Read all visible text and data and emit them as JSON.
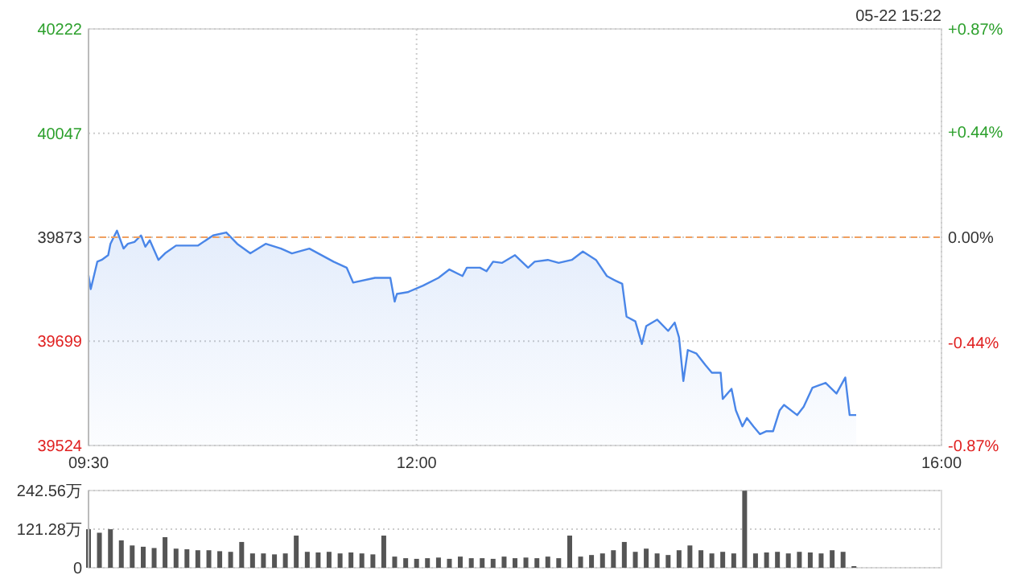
{
  "chart_data": [
    {
      "type": "area",
      "annotations": [
        "05-22 15:22"
      ],
      "x": [
        9.5,
        9.517,
        9.567,
        9.6,
        9.65,
        9.667,
        9.717,
        9.767,
        9.8,
        9.85,
        9.9,
        9.933,
        9.967,
        10.033,
        10.083,
        10.167,
        10.267,
        10.333,
        10.45,
        10.55,
        10.633,
        10.733,
        10.85,
        10.967,
        11.05,
        11.183,
        11.367,
        11.467,
        11.517,
        11.683,
        11.8,
        11.833,
        11.85,
        11.933,
        12.05,
        12.167,
        12.25,
        12.35,
        12.383,
        12.483,
        12.533,
        12.583,
        12.65,
        12.75,
        12.85,
        12.9,
        13,
        13.083,
        13.183,
        13.267,
        13.367,
        13.45,
        13.517,
        13.567,
        13.6,
        13.667,
        13.717,
        13.75,
        13.833,
        13.917,
        13.967,
        14,
        14.033,
        14.067,
        14.133,
        14.2,
        14.25,
        14.317,
        14.333,
        14.4,
        14.433,
        14.483,
        14.517,
        14.567,
        14.617,
        14.667,
        14.717,
        14.767,
        14.8,
        14.9,
        14.95,
        15.017,
        15.117,
        15.2,
        15.267,
        15.3,
        15.35
      ],
      "series": [
        {
          "color": "#4a86e8",
          "values": [
            39809,
            39786,
            39832,
            39835,
            39843,
            39862,
            39884,
            39854,
            39862,
            39865,
            39876,
            39857,
            39868,
            39835,
            39846,
            39859,
            39859,
            39859,
            39876,
            39881,
            39862,
            39846,
            39862,
            39854,
            39846,
            39854,
            39832,
            39822,
            39797,
            39805,
            39805,
            39765,
            39778,
            39781,
            39792,
            39805,
            39819,
            39808,
            39822,
            39822,
            39816,
            39832,
            39830,
            39843,
            39822,
            39832,
            39835,
            39830,
            39835,
            39849,
            39835,
            39808,
            39800,
            39795,
            39740,
            39732,
            39694,
            39724,
            39735,
            39716,
            39730,
            39705,
            39632,
            39684,
            39678,
            39659,
            39646,
            39646,
            39602,
            39619,
            39583,
            39556,
            39570,
            39556,
            39543,
            39548,
            39548,
            39583,
            39592,
            39575,
            39589,
            39621,
            39629,
            39611,
            39638,
            39575,
            39575
          ]
        }
      ],
      "xlim": [
        9.5,
        16
      ],
      "xticks": [
        {
          "value": 9.5,
          "label": "09:30"
        },
        {
          "value": 12,
          "label": "12:00"
        },
        {
          "value": 16,
          "label": "16:00"
        }
      ],
      "ylim": [
        39524,
        40222
      ],
      "yticks": [
        39524,
        39699,
        39873,
        40047,
        40222
      ],
      "y2lim": [
        -0.87,
        0.87
      ],
      "y2ticks": [
        {
          "value": -0.87,
          "label": "-0.87%"
        },
        {
          "value": -0.44,
          "label": "-0.44%"
        },
        {
          "value": 0,
          "label": "0.00%"
        },
        {
          "value": 0.44,
          "label": "+0.44%"
        },
        {
          "value": 0.87,
          "label": "+0.87%"
        }
      ],
      "ref_lines": [
        {
          "axis": "y",
          "value": 39873,
          "color": "#f0a060",
          "line_style": "dashed"
        }
      ],
      "grid": true
    },
    {
      "type": "bar",
      "tick_labels": "y",
      "grid": "y",
      "x": [
        9.5,
        9.583,
        9.667,
        9.75,
        9.833,
        9.917,
        10,
        10.083,
        10.167,
        10.25,
        10.333,
        10.417,
        10.5,
        10.583,
        10.667,
        10.75,
        10.833,
        10.917,
        11,
        11.083,
        11.167,
        11.25,
        11.333,
        11.417,
        11.5,
        11.583,
        11.667,
        11.75,
        11.833,
        11.917,
        12,
        12.083,
        12.167,
        12.25,
        12.333,
        12.417,
        12.5,
        12.583,
        12.667,
        12.75,
        12.833,
        12.917,
        13,
        13.083,
        13.167,
        13.25,
        13.333,
        13.417,
        13.5,
        13.583,
        13.667,
        13.75,
        13.833,
        13.917,
        14,
        14.083,
        14.167,
        14.25,
        14.333,
        14.417,
        14.5,
        14.583,
        14.667,
        14.75,
        14.833,
        14.917,
        15,
        15.083,
        15.167,
        15.25,
        15.333
      ],
      "values": [
        121,
        110,
        121,
        86,
        70,
        66,
        62,
        96,
        60,
        58,
        55,
        55,
        52,
        50,
        81,
        45,
        45,
        42,
        45,
        101,
        50,
        48,
        50,
        45,
        48,
        45,
        42,
        101,
        35,
        30,
        28,
        30,
        32,
        28,
        35,
        30,
        30,
        28,
        35,
        30,
        32,
        30,
        35,
        30,
        101,
        35,
        40,
        45,
        55,
        81,
        50,
        60,
        45,
        40,
        55,
        70,
        55,
        45,
        50,
        45,
        242,
        45,
        48,
        50,
        45,
        50,
        48,
        45,
        55,
        50,
        5
      ],
      "color": "#555555",
      "xlim": [
        9.5,
        16
      ],
      "ylim": [
        0,
        242.56
      ],
      "yticks": [
        0,
        {
          "value": 121.28,
          "label": "121.28万"
        },
        {
          "value": 242.56,
          "label": "242.56万"
        }
      ]
    }
  ]
}
